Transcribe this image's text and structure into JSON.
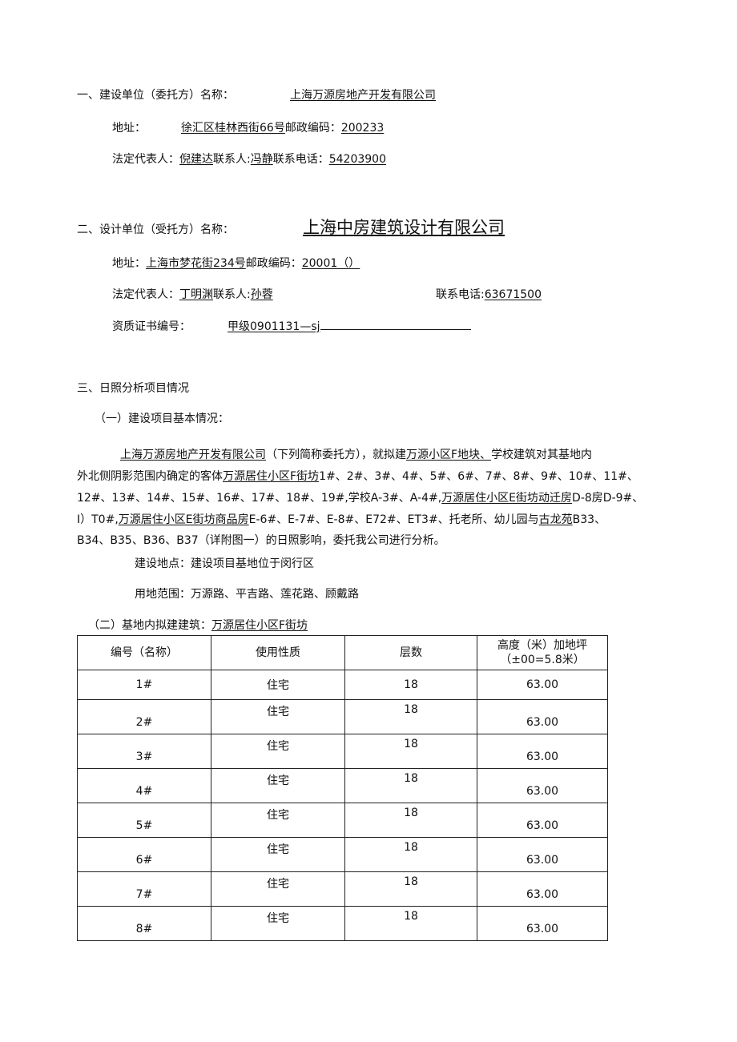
{
  "section1": {
    "heading": "一、建设单位（委托方）名称：",
    "company": "上海万源房地产开发有限公司",
    "address_label": "地址：",
    "address": "徐汇区桂林西街66号",
    "postcode_label": "邮政编码：",
    "postcode": "200233",
    "rep_label": "法定代表人：",
    "rep": "倪建达",
    "contact_label": "联系人:",
    "contact": "冯静",
    "phone_label": "联系电话：",
    "phone": "54203900"
  },
  "section2": {
    "heading": "二、设计单位（受托方）名称：",
    "company": "上海中房建筑设计有限公司",
    "address_label": "地址：",
    "address": "上海市梦花街234号",
    "postcode_label": "邮政编码：",
    "postcode": "20001（）",
    "rep_label": "法定代表人：",
    "rep": "丁明渊",
    "contact_label": "联系人:",
    "contact": "孙蓉",
    "phone_label": "联系电话:",
    "phone": "63671500",
    "cert_label": "资质证书编号：",
    "cert": "甲级0901131—sj"
  },
  "section3": {
    "heading": "三、日照分析项目情况",
    "sub1": "（一）建设项目基本情况：",
    "paragraph_lines": [
      [
        {
          "t": "上海万源房地产开发有限公司",
          "u": true
        },
        {
          "t": "（下列简称委托方），就拟建",
          "u": false
        },
        {
          "t": "万源小区F地块、",
          "u": true
        },
        {
          "t": "学校建筑对其基地内",
          "u": false
        }
      ],
      [
        {
          "t": "外北侧阴影范围内确定的客体",
          "u": false
        },
        {
          "t": "万源居住小区F街坊",
          "u": true
        },
        {
          "t": "1#、2#、3#、4#、5#、6#、7#、8#、9#、10#、11#、",
          "u": false
        }
      ],
      [
        {
          "t": "12#、13#、14#、15#、16#、17#、18#、19#,学校A-3#、A-4#,",
          "u": false
        },
        {
          "t": "万源居住小区E街坊动迁房",
          "u": true
        },
        {
          "t": "D-8房D-9#、",
          "u": false
        }
      ],
      [
        {
          "t": "I）T0#,",
          "u": false
        },
        {
          "t": "万源居住小区E街坊商品房",
          "u": true
        },
        {
          "t": "E-6#、E-7#、E-8#、E72#、ET3#、托老所、幼儿园与",
          "u": false
        },
        {
          "t": "古龙苑",
          "u": true
        },
        {
          "t": "B33、",
          "u": false
        }
      ],
      [
        {
          "t": "B34、B35、B36、B37（详附图一）的日照影响，委托我公司进行分析。",
          "u": false
        }
      ]
    ],
    "location": "建设地点：建设项目基地位于闵行区",
    "land": "用地范围：万源路、平吉路、莲花路、顾戴路",
    "sub2_label": "（二）基地内拟建建筑：",
    "sub2_value": "万源居住小区F街坊"
  },
  "table": {
    "headers": [
      "编号（名称）",
      "使用性质",
      "层数",
      "高度（米）加地坪（±00=5.8米）"
    ],
    "rows": [
      [
        "1#",
        "住宅",
        "18",
        "63.00"
      ],
      [
        "2#",
        "住宅",
        "18",
        "63.00"
      ],
      [
        "3#",
        "住宅",
        "18",
        "63.00"
      ],
      [
        "4#",
        "住宅",
        "18",
        "63.00"
      ],
      [
        "5#",
        "住宅",
        "18",
        "63.00"
      ],
      [
        "6#",
        "住宅",
        "18",
        "63.00"
      ],
      [
        "7#",
        "住宅",
        "18",
        "63.00"
      ],
      [
        "8#",
        "住宅",
        "18",
        "63.00"
      ]
    ]
  }
}
